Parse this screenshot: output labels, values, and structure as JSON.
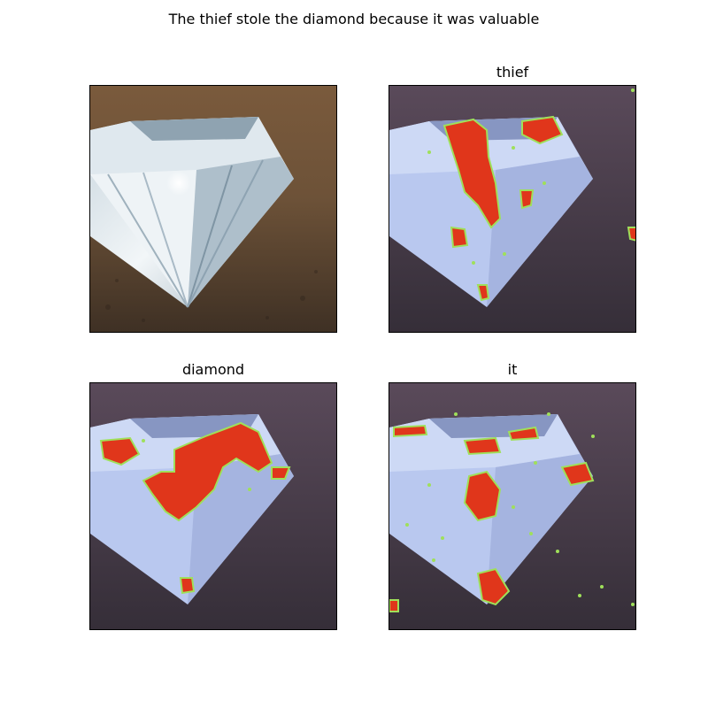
{
  "figure": {
    "title": "The thief stole the diamond because it was valuable"
  },
  "panels": [
    {
      "title": ""
    },
    {
      "title": "thief"
    },
    {
      "title": "diamond"
    },
    {
      "title": "it"
    }
  ],
  "colors": {
    "background_original": "#6b5038",
    "background_tinted": "#4e4452",
    "diamond_original": "#dfe7ec",
    "diamond_tinted": "#b7c6ef",
    "heat_hot": "#e0361b",
    "heat_edge": "#9fe05a"
  }
}
